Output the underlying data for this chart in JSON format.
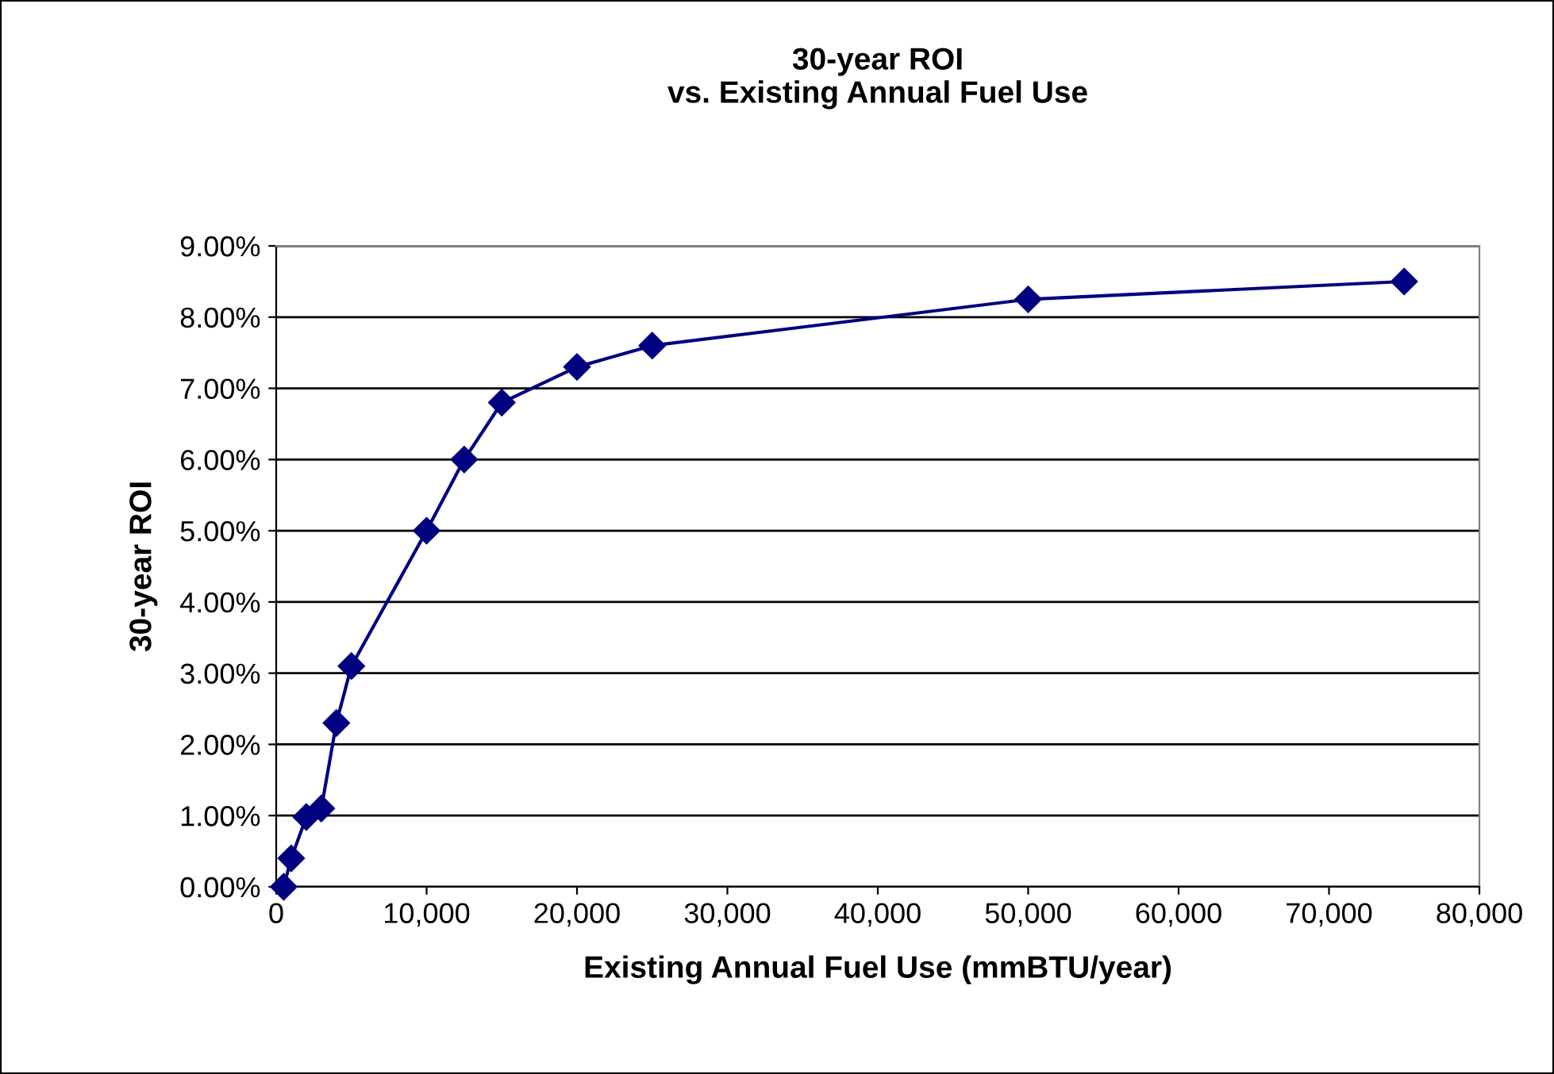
{
  "chart_data": {
    "type": "line",
    "title": "30-year ROI\nvs. Existing Annual Fuel Use",
    "xlabel": "Existing Annual Fuel Use (mmBTU/year)",
    "ylabel": "30-year ROI",
    "x": [
      500,
      1000,
      2000,
      3000,
      4000,
      5000,
      10000,
      12500,
      15000,
      20000,
      25000,
      50000,
      75000
    ],
    "series": [
      {
        "color": "#000080",
        "values": [
          0.0,
          0.4,
          0.98,
          1.1,
          2.3,
          3.1,
          5.0,
          6.0,
          6.8,
          7.3,
          7.6,
          8.25,
          8.5
        ]
      }
    ],
    "marker": "diamond",
    "line_style": "solid",
    "grid": "y",
    "legend": false,
    "xlim": [
      0,
      80000
    ],
    "xticks": [
      {
        "value": 0,
        "label": "0"
      },
      {
        "value": 10000,
        "label": "10,000"
      },
      {
        "value": 20000,
        "label": "20,000"
      },
      {
        "value": 30000,
        "label": "30,000"
      },
      {
        "value": 40000,
        "label": "40,000"
      },
      {
        "value": 50000,
        "label": "50,000"
      },
      {
        "value": 60000,
        "label": "60,000"
      },
      {
        "value": 70000,
        "label": "70,000"
      },
      {
        "value": 80000,
        "label": "80,000"
      }
    ],
    "ylim": [
      0,
      9
    ],
    "yticks": [
      {
        "value": 0,
        "label": "0.00%"
      },
      {
        "value": 1,
        "label": "1.00%"
      },
      {
        "value": 2,
        "label": "2.00%"
      },
      {
        "value": 3,
        "label": "3.00%"
      },
      {
        "value": 4,
        "label": "4.00%"
      },
      {
        "value": 5,
        "label": "5.00%"
      },
      {
        "value": 6,
        "label": "6.00%"
      },
      {
        "value": 7,
        "label": "7.00%"
      },
      {
        "value": 8,
        "label": "8.00%"
      },
      {
        "value": 9,
        "label": "9.00%"
      }
    ]
  }
}
